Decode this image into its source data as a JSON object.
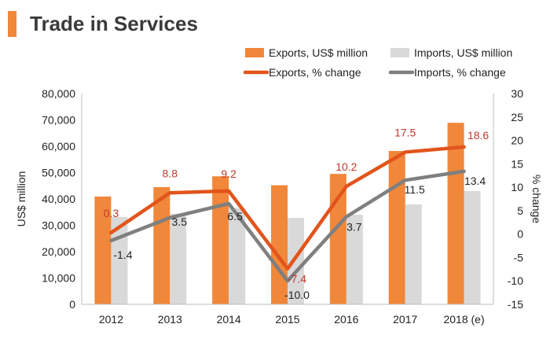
{
  "header": {
    "title": "Trade in Services"
  },
  "colors": {
    "accent": "#f0873a",
    "exports_bar": "#f0873a",
    "imports_bar": "#d9d9d9",
    "exports_line": "#e2541b",
    "imports_line": "#7f7f7f",
    "exports_label": "#c0392b"
  },
  "chart_data": {
    "type": "bar",
    "title": "Trade in Services",
    "categories": [
      "2012",
      "2013",
      "2014",
      "2015",
      "2016",
      "2017",
      "2018 (e)"
    ],
    "series": [
      {
        "name": "Exports, US$ million",
        "kind": "bar",
        "axis": "left",
        "values": [
          40900,
          44500,
          48600,
          45200,
          49500,
          58200,
          68900
        ]
      },
      {
        "name": "Imports, US$ million",
        "kind": "bar",
        "axis": "left",
        "values": [
          33200,
          34400,
          36500,
          32800,
          34000,
          37900,
          43000
        ]
      },
      {
        "name": "Exports, % change",
        "kind": "line",
        "axis": "right",
        "values": [
          0.3,
          8.8,
          9.2,
          -7.4,
          10.2,
          17.5,
          18.6
        ],
        "labels": [
          "0.3",
          "8.8",
          "9.2",
          "-7.4",
          "10.2",
          "17.5",
          "18.6"
        ]
      },
      {
        "name": "Imports, % change",
        "kind": "line",
        "axis": "right",
        "values": [
          -1.4,
          3.5,
          6.5,
          -10.0,
          3.7,
          11.5,
          13.4
        ],
        "labels": [
          "-1.4",
          "3.5",
          "6.5",
          "-10.0",
          "3.7",
          "11.5",
          "13.4"
        ]
      }
    ],
    "ylabel": "US$ million",
    "ylim": [
      0,
      80000
    ],
    "yticks": [
      "0",
      "10,000",
      "20,000",
      "30,000",
      "40,000",
      "50,000",
      "60,000",
      "70,000",
      "80,000"
    ],
    "y2label": "% change",
    "y2lim": [
      -15,
      30
    ],
    "y2ticks": [
      "-15",
      "-10",
      "-5",
      "0",
      "5",
      "10",
      "15",
      "20",
      "25",
      "30"
    ],
    "legend": "top-right",
    "grid": false
  }
}
